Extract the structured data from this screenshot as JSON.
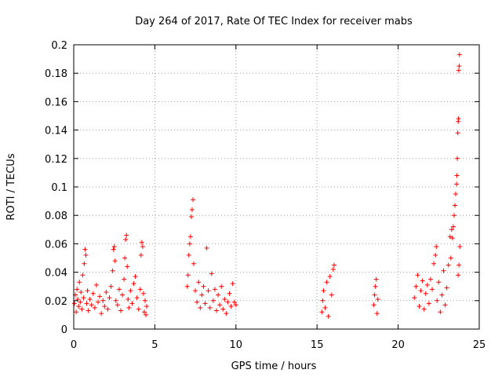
{
  "chart_data": {
    "type": "scatter",
    "title": "Day 264 of 2017, Rate Of TEC Index for receiver mabs",
    "xlabel": "GPS time / hours",
    "ylabel": "ROTI / TECUs",
    "xlim": [
      0,
      25
    ],
    "ylim": [
      0,
      0.2
    ],
    "xticks": [
      0,
      5,
      10,
      15,
      20,
      25
    ],
    "yticks": [
      0,
      0.02,
      0.04,
      0.06,
      0.08,
      0.1,
      0.12,
      0.14,
      0.16,
      0.18,
      0.2
    ],
    "xtick_labels": [
      "0",
      "5",
      "10",
      "15",
      "20",
      "25"
    ],
    "ytick_labels": [
      "0",
      "0.02",
      "0.04",
      "0.06",
      "0.08",
      "0.1",
      "0.12",
      "0.14",
      "0.16",
      "0.18",
      "0.2"
    ],
    "grid": true,
    "marker": "+",
    "color": "#ff0000",
    "series": [
      {
        "name": "ROTI",
        "points": [
          [
            0.05,
            0.018
          ],
          [
            0.1,
            0.024
          ],
          [
            0.15,
            0.012
          ],
          [
            0.2,
            0.028
          ],
          [
            0.25,
            0.021
          ],
          [
            0.3,
            0.016
          ],
          [
            0.35,
            0.033
          ],
          [
            0.4,
            0.019
          ],
          [
            0.45,
            0.026
          ],
          [
            0.5,
            0.014
          ],
          [
            0.55,
            0.038
          ],
          [
            0.6,
            0.022
          ],
          [
            0.65,
            0.046
          ],
          [
            0.7,
            0.056
          ],
          [
            0.75,
            0.052
          ],
          [
            0.8,
            0.018
          ],
          [
            0.85,
            0.027
          ],
          [
            0.9,
            0.013
          ],
          [
            1.0,
            0.021
          ],
          [
            1.1,
            0.017
          ],
          [
            1.2,
            0.025
          ],
          [
            1.3,
            0.015
          ],
          [
            1.4,
            0.031
          ],
          [
            1.5,
            0.019
          ],
          [
            1.6,
            0.023
          ],
          [
            1.7,
            0.011
          ],
          [
            1.8,
            0.02
          ],
          [
            1.9,
            0.016
          ],
          [
            2.0,
            0.026
          ],
          [
            2.1,
            0.014
          ],
          [
            2.2,
            0.022
          ],
          [
            2.3,
            0.03
          ],
          [
            2.4,
            0.041
          ],
          [
            2.45,
            0.056
          ],
          [
            2.5,
            0.058
          ],
          [
            2.55,
            0.048
          ],
          [
            2.6,
            0.02
          ],
          [
            2.7,
            0.017
          ],
          [
            2.8,
            0.028
          ],
          [
            2.9,
            0.013
          ],
          [
            3.0,
            0.024
          ],
          [
            3.1,
            0.035
          ],
          [
            3.15,
            0.05
          ],
          [
            3.2,
            0.063
          ],
          [
            3.25,
            0.066
          ],
          [
            3.3,
            0.044
          ],
          [
            3.35,
            0.021
          ],
          [
            3.4,
            0.015
          ],
          [
            3.5,
            0.027
          ],
          [
            3.6,
            0.018
          ],
          [
            3.7,
            0.032
          ],
          [
            3.8,
            0.037
          ],
          [
            3.9,
            0.022
          ],
          [
            4.0,
            0.014
          ],
          [
            4.1,
            0.028
          ],
          [
            4.15,
            0.052
          ],
          [
            4.2,
            0.061
          ],
          [
            4.25,
            0.058
          ],
          [
            4.3,
            0.025
          ],
          [
            4.35,
            0.012
          ],
          [
            4.4,
            0.02
          ],
          [
            4.45,
            0.01
          ],
          [
            4.5,
            0.016
          ],
          [
            7.0,
            0.03
          ],
          [
            7.05,
            0.038
          ],
          [
            7.1,
            0.052
          ],
          [
            7.15,
            0.06
          ],
          [
            7.2,
            0.065
          ],
          [
            7.25,
            0.079
          ],
          [
            7.3,
            0.084
          ],
          [
            7.35,
            0.091
          ],
          [
            7.4,
            0.046
          ],
          [
            7.5,
            0.027
          ],
          [
            7.6,
            0.019
          ],
          [
            7.7,
            0.033
          ],
          [
            7.8,
            0.015
          ],
          [
            7.9,
            0.024
          ],
          [
            8.0,
            0.03
          ],
          [
            8.1,
            0.018
          ],
          [
            8.2,
            0.057
          ],
          [
            8.3,
            0.027
          ],
          [
            8.4,
            0.015
          ],
          [
            8.5,
            0.039
          ],
          [
            8.6,
            0.02
          ],
          [
            8.7,
            0.028
          ],
          [
            8.8,
            0.013
          ],
          [
            8.9,
            0.024
          ],
          [
            9.0,
            0.017
          ],
          [
            9.1,
            0.03
          ],
          [
            9.2,
            0.014
          ],
          [
            9.3,
            0.021
          ],
          [
            9.4,
            0.011
          ],
          [
            9.5,
            0.019
          ],
          [
            9.6,
            0.025
          ],
          [
            9.7,
            0.016
          ],
          [
            9.8,
            0.032
          ],
          [
            9.9,
            0.019
          ],
          [
            10.0,
            0.017
          ],
          [
            15.3,
            0.012
          ],
          [
            15.35,
            0.02
          ],
          [
            15.4,
            0.027
          ],
          [
            15.5,
            0.015
          ],
          [
            15.6,
            0.033
          ],
          [
            15.7,
            0.009
          ],
          [
            15.8,
            0.037
          ],
          [
            15.9,
            0.024
          ],
          [
            16.0,
            0.042
          ],
          [
            16.05,
            0.045
          ],
          [
            18.5,
            0.017
          ],
          [
            18.55,
            0.024
          ],
          [
            18.6,
            0.03
          ],
          [
            18.65,
            0.035
          ],
          [
            18.7,
            0.011
          ],
          [
            18.75,
            0.021
          ],
          [
            21.0,
            0.022
          ],
          [
            21.1,
            0.03
          ],
          [
            21.2,
            0.038
          ],
          [
            21.3,
            0.016
          ],
          [
            21.4,
            0.027
          ],
          [
            21.5,
            0.034
          ],
          [
            21.6,
            0.014
          ],
          [
            21.7,
            0.025
          ],
          [
            21.8,
            0.031
          ],
          [
            21.9,
            0.018
          ],
          [
            22.0,
            0.035
          ],
          [
            22.1,
            0.028
          ],
          [
            22.2,
            0.046
          ],
          [
            22.3,
            0.052
          ],
          [
            22.35,
            0.058
          ],
          [
            22.4,
            0.02
          ],
          [
            22.5,
            0.033
          ],
          [
            22.6,
            0.012
          ],
          [
            22.7,
            0.024
          ],
          [
            22.8,
            0.041
          ],
          [
            22.9,
            0.017
          ],
          [
            23.0,
            0.029
          ],
          [
            23.1,
            0.045
          ],
          [
            23.2,
            0.065
          ],
          [
            23.25,
            0.05
          ],
          [
            23.3,
            0.07
          ],
          [
            23.35,
            0.064
          ],
          [
            23.4,
            0.072
          ],
          [
            23.45,
            0.08
          ],
          [
            23.5,
            0.087
          ],
          [
            23.55,
            0.095
          ],
          [
            23.6,
            0.102
          ],
          [
            23.62,
            0.108
          ],
          [
            23.65,
            0.12
          ],
          [
            23.68,
            0.138
          ],
          [
            23.7,
            0.146
          ],
          [
            23.72,
            0.148
          ],
          [
            23.74,
            0.182
          ],
          [
            23.76,
            0.185
          ],
          [
            23.78,
            0.193
          ],
          [
            23.8,
            0.058
          ],
          [
            23.75,
            0.045
          ],
          [
            23.7,
            0.038
          ]
        ]
      }
    ]
  }
}
